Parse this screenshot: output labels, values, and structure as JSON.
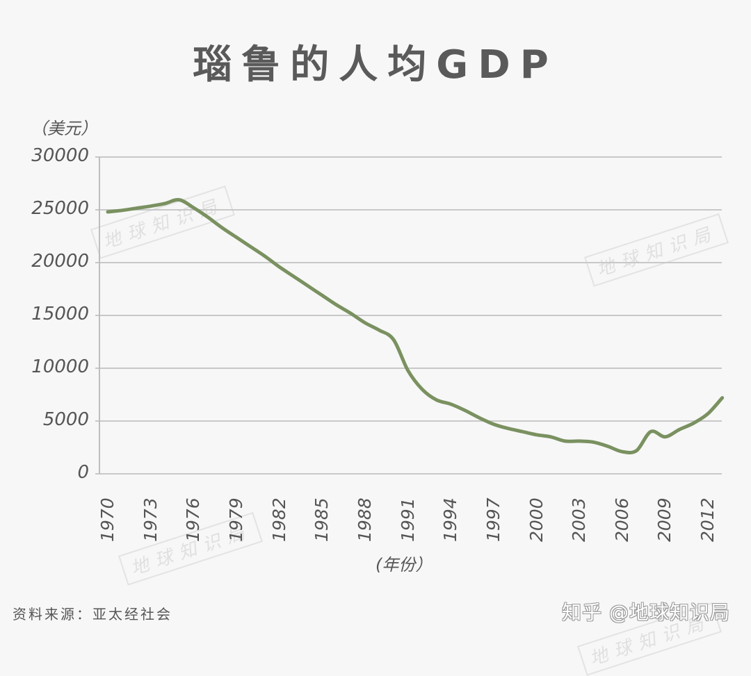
{
  "title": "瑙鲁的人均GDP",
  "y_unit": "（美元）",
  "x_axis_label": "(年份）",
  "y_ticks": [
    "30000",
    "25000",
    "20000",
    "15000",
    "10000",
    "5000",
    "0"
  ],
  "x_ticks": [
    "1970",
    "1973",
    "1976",
    "1979",
    "1982",
    "1985",
    "1988",
    "1991",
    "1994",
    "1997",
    "2000",
    "2003",
    "2006",
    "2009",
    "2012"
  ],
  "source": "资料来源：亚太经社会",
  "zhihu_credit": "知乎 @地球知识局",
  "watermark_text": "地球知识局",
  "colors": {
    "line": "#7a9160",
    "grid": "#c8c8c8",
    "background": "#f7f7f7",
    "text": "#555555"
  },
  "chart_data": {
    "type": "line",
    "title": "瑙鲁的人均GDP",
    "xlabel": "(年份）",
    "ylabel": "（美元）",
    "ylim": [
      0,
      30000
    ],
    "grid": true,
    "legend": null,
    "x": [
      1970,
      1971,
      1972,
      1973,
      1974,
      1975,
      1976,
      1977,
      1978,
      1979,
      1980,
      1981,
      1982,
      1983,
      1984,
      1985,
      1986,
      1987,
      1988,
      1989,
      1990,
      1991,
      1992,
      1993,
      1994,
      1995,
      1996,
      1997,
      1998,
      1999,
      2000,
      2001,
      2002,
      2003,
      2004,
      2005,
      2006,
      2007,
      2008,
      2009,
      2010,
      2011,
      2012,
      2013
    ],
    "series": [
      {
        "name": "瑙鲁人均GDP",
        "values": [
          24800,
          24950,
          25150,
          25350,
          25600,
          25950,
          25200,
          24300,
          23300,
          22400,
          21500,
          20600,
          19600,
          18700,
          17800,
          16900,
          16000,
          15200,
          14300,
          13600,
          12700,
          9800,
          8000,
          7000,
          6600,
          6000,
          5300,
          4700,
          4300,
          4000,
          3700,
          3500,
          3100,
          3100,
          3000,
          2600,
          2100,
          2200,
          4000,
          3500,
          4200,
          4800,
          5700,
          7200
        ]
      }
    ]
  }
}
